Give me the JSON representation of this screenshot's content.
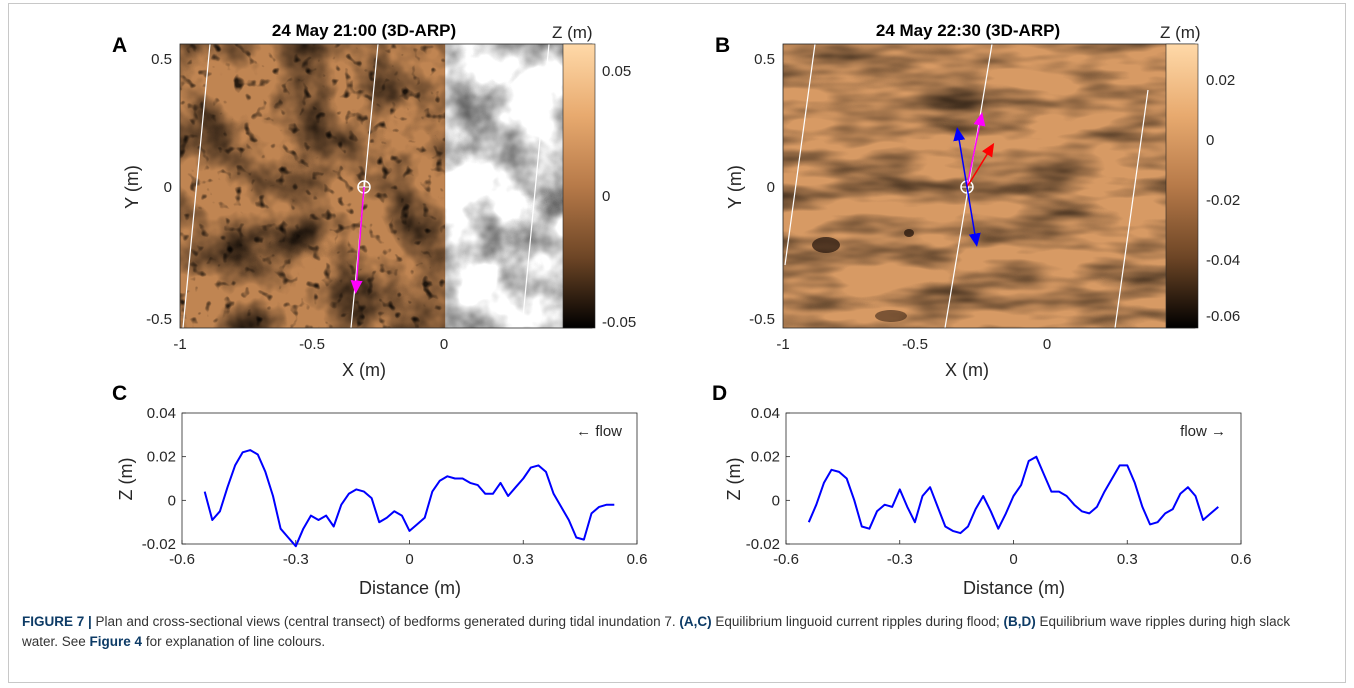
{
  "figure": {
    "panels": [
      {
        "label": "A",
        "title": "24 May 21:00 (3D-ARP)",
        "colorbar_label": "Z (m)",
        "colorbar_ticks": [
          "0.05",
          "0",
          "-0.05"
        ],
        "xlabel": "X (m)",
        "ylabel": "Y (m)",
        "xticks": [
          "-1",
          "-0.5",
          "0"
        ],
        "yticks": [
          "0.5",
          "0",
          "-0.5"
        ],
        "arrows": [
          "magenta"
        ]
      },
      {
        "label": "B",
        "title": "24 May 22:30 (3D-ARP)",
        "colorbar_label": "Z (m)",
        "colorbar_ticks": [
          "0.02",
          "0",
          "-0.02",
          "-0.04",
          "-0.06"
        ],
        "xlabel": "X (m)",
        "ylabel": "Y (m)",
        "xticks": [
          "-1",
          "-0.5",
          "0"
        ],
        "yticks": [
          "0.5",
          "0",
          "-0.5"
        ],
        "arrows": [
          "magenta",
          "red",
          "blue"
        ]
      }
    ]
  },
  "chart_data": [
    {
      "type": "line",
      "label": "C",
      "xlabel": "Distance (m)",
      "ylabel": "Z (m)",
      "xlim": [
        -0.6,
        0.6
      ],
      "ylim": [
        -0.02,
        0.04
      ],
      "xticks": [
        "-0.6",
        "-0.3",
        "0",
        "0.3",
        "0.6"
      ],
      "yticks": [
        "0.04",
        "0.02",
        "0",
        "-0.02"
      ],
      "annotation": "← flow",
      "color": "#0000ff",
      "x": [
        -0.54,
        -0.52,
        -0.5,
        -0.48,
        -0.46,
        -0.44,
        -0.42,
        -0.4,
        -0.38,
        -0.36,
        -0.34,
        -0.32,
        -0.3,
        -0.28,
        -0.26,
        -0.24,
        -0.22,
        -0.2,
        -0.18,
        -0.16,
        -0.14,
        -0.12,
        -0.1,
        -0.08,
        -0.06,
        -0.04,
        -0.02,
        0,
        0.02,
        0.04,
        0.06,
        0.08,
        0.1,
        0.12,
        0.14,
        0.16,
        0.18,
        0.2,
        0.22,
        0.24,
        0.26,
        0.28,
        0.3,
        0.32,
        0.34,
        0.36,
        0.38,
        0.4,
        0.42,
        0.44,
        0.46,
        0.48,
        0.5,
        0.52,
        0.54
      ],
      "y": [
        0.004,
        -0.009,
        -0.005,
        0.006,
        0.016,
        0.022,
        0.023,
        0.021,
        0.013,
        0.002,
        -0.013,
        -0.017,
        -0.021,
        -0.013,
        -0.007,
        -0.009,
        -0.007,
        -0.012,
        -0.002,
        0.003,
        0.005,
        0.004,
        0.001,
        -0.01,
        -0.008,
        -0.005,
        -0.007,
        -0.014,
        -0.011,
        -0.008,
        0.004,
        0.009,
        0.011,
        0.01,
        0.01,
        0.008,
        0.007,
        0.003,
        0.003,
        0.008,
        0.002,
        0.006,
        0.01,
        0.015,
        0.016,
        0.013,
        0.003,
        -0.003,
        -0.009,
        -0.017,
        -0.018,
        -0.006,
        -0.003,
        -0.002,
        -0.002
      ]
    },
    {
      "type": "line",
      "label": "D",
      "xlabel": "Distance (m)",
      "ylabel": "Z (m)",
      "xlim": [
        -0.6,
        0.6
      ],
      "ylim": [
        -0.02,
        0.04
      ],
      "xticks": [
        "-0.6",
        "-0.3",
        "0",
        "0.3",
        "0.6"
      ],
      "yticks": [
        "0.04",
        "0.02",
        "0",
        "-0.02"
      ],
      "annotation": "flow →",
      "color": "#0000ff",
      "x": [
        -0.54,
        -0.52,
        -0.5,
        -0.48,
        -0.46,
        -0.44,
        -0.42,
        -0.4,
        -0.38,
        -0.36,
        -0.34,
        -0.32,
        -0.3,
        -0.28,
        -0.26,
        -0.24,
        -0.22,
        -0.2,
        -0.18,
        -0.16,
        -0.14,
        -0.12,
        -0.1,
        -0.08,
        -0.06,
        -0.04,
        -0.02,
        0,
        0.02,
        0.04,
        0.06,
        0.08,
        0.1,
        0.12,
        0.14,
        0.16,
        0.18,
        0.2,
        0.22,
        0.24,
        0.26,
        0.28,
        0.3,
        0.32,
        0.34,
        0.36,
        0.38,
        0.4,
        0.42,
        0.44,
        0.46,
        0.48,
        0.5,
        0.52,
        0.54
      ],
      "y": [
        -0.01,
        -0.002,
        0.008,
        0.014,
        0.013,
        0.01,
        0.0,
        -0.012,
        -0.013,
        -0.005,
        -0.002,
        -0.003,
        0.005,
        -0.003,
        -0.01,
        0.002,
        0.006,
        -0.003,
        -0.012,
        -0.014,
        -0.015,
        -0.012,
        -0.004,
        0.002,
        -0.005,
        -0.013,
        -0.006,
        0.002,
        0.007,
        0.018,
        0.02,
        0.012,
        0.004,
        0.004,
        0.002,
        -0.002,
        -0.005,
        -0.006,
        -0.003,
        0.004,
        0.01,
        0.016,
        0.016,
        0.008,
        -0.003,
        -0.011,
        -0.01,
        -0.006,
        -0.004,
        0.003,
        0.006,
        0.002,
        -0.009,
        -0.006,
        -0.003
      ]
    }
  ],
  "caption": {
    "figure_label": "FIGURE 7 |",
    "text_1": " Plan and cross-sectional views (central transect) of bedforms generated during tidal inundation 7. ",
    "ref_ac": "(A,C)",
    "text_2": " Equilibrium linguoid current ripples during flood; ",
    "ref_bd": "(B,D)",
    "text_3": " Equilibrium wave ripples during high slack water. See ",
    "ref_fig": "Figure 4",
    "text_4": " for explanation of line colours."
  },
  "colors": {
    "magenta": "#ff00ff",
    "red": "#ff0000",
    "blue": "#0000ff",
    "line": "#0000ff",
    "caption_bold": "#0d3b66"
  }
}
